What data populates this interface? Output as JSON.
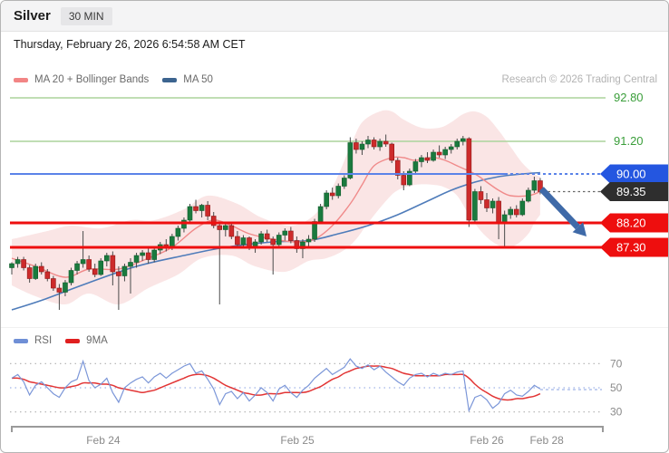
{
  "header": {
    "title": "Silver",
    "timeframe": "30 MIN"
  },
  "date_line": "Thursday, February 26, 2026 6:54:58 AM CET",
  "credit": "Research © 2026 Trading Central",
  "legend_price": {
    "items": [
      {
        "label": "MA 20 + Bollinger Bands",
        "color": "#f28585"
      },
      {
        "label": "MA 50",
        "color": "#3c648f"
      }
    ]
  },
  "legend_rsi": {
    "items": [
      {
        "label": "RSI",
        "color": "#6f8fd6"
      },
      {
        "label": "9MA",
        "color": "#e01f1f"
      }
    ]
  },
  "chart_data": {
    "type": "candlestick",
    "instrument": "Silver",
    "interval": "30 MIN",
    "colors": {
      "candle_up": "#1a7a3e",
      "candle_up_border": "#115c2c",
      "candle_down": "#cd2b2b",
      "candle_down_border": "#8e1616",
      "wick": "#4a4a4a",
      "ma20": "#f08a8a",
      "ma50": "#4f7cba",
      "bollinger_fill": "#f6cfcf",
      "rsi": "#7b96d8",
      "rsi_ma": "#e23535",
      "axis": "#9a9a9a",
      "tick_text": "#8a8a8a"
    },
    "price_axis": {
      "levels": [
        {
          "label": "92.80",
          "price": 92.8,
          "line_color": "#abd49c",
          "line_width": 1.5,
          "line": "solid",
          "badge": null,
          "text_color": "#3a9e3a",
          "layer": "under"
        },
        {
          "label": "91.20",
          "price": 91.2,
          "line_color": "#abd49c",
          "line_width": 1.5,
          "line": "solid",
          "badge": null,
          "text_color": "#3a9e3a",
          "layer": "under"
        },
        {
          "label": "90.00",
          "price": 90.0,
          "line_color": "#5b83e8",
          "line_width": 2,
          "line": "solid_dash",
          "badge": "#2456e0",
          "text_color": "#ffffff",
          "layer": "over"
        },
        {
          "label": "89.35",
          "price": 89.35,
          "line_color": "#666666",
          "line_width": 1.2,
          "line": "dash_tail",
          "badge": "#2e2e2e",
          "text_color": "#ffffff",
          "layer": "over"
        },
        {
          "label": "88.20",
          "price": 88.2,
          "line_color": "#ee0e0e",
          "line_width": 3,
          "line": "solid",
          "badge": "#ee0e0e",
          "text_color": "#ffffff",
          "layer": "over"
        },
        {
          "label": "87.30",
          "price": 87.3,
          "line_color": "#ee0e0e",
          "line_width": 3,
          "line": "solid",
          "badge": "#ee0e0e",
          "text_color": "#ffffff",
          "layer": "over"
        }
      ]
    },
    "x_axis": {
      "ticks": [
        {
          "label": "Feb 24",
          "i": 15.4
        },
        {
          "label": "Feb 25",
          "i": 48.1
        },
        {
          "label": "Feb 26",
          "i": 80.0
        },
        {
          "label": "Feb 28",
          "i": 90.1
        }
      ]
    },
    "candles": [
      [
        86.55,
        86.75,
        86.3,
        86.7
      ],
      [
        86.7,
        86.95,
        86.55,
        86.85
      ],
      [
        86.85,
        86.95,
        86.45,
        86.55
      ],
      [
        86.55,
        86.65,
        86.0,
        86.15
      ],
      [
        86.15,
        86.7,
        86.1,
        86.6
      ],
      [
        86.6,
        86.75,
        86.3,
        86.4
      ],
      [
        86.4,
        86.5,
        86.05,
        86.15
      ],
      [
        86.15,
        86.25,
        85.7,
        85.8
      ],
      [
        85.8,
        85.95,
        85.0,
        85.65
      ],
      [
        85.65,
        86.1,
        85.5,
        86.0
      ],
      [
        86.0,
        86.55,
        85.9,
        86.45
      ],
      [
        86.45,
        86.8,
        86.3,
        86.7
      ],
      [
        86.7,
        87.9,
        86.55,
        86.85
      ],
      [
        86.85,
        87.0,
        86.4,
        86.5
      ],
      [
        86.5,
        86.7,
        86.2,
        86.3
      ],
      [
        86.3,
        86.9,
        86.25,
        86.8
      ],
      [
        86.8,
        87.1,
        86.6,
        87.0
      ],
      [
        87.0,
        87.15,
        85.9,
        86.4
      ],
      [
        86.4,
        86.6,
        85.0,
        86.25
      ],
      [
        86.25,
        86.7,
        86.05,
        86.6
      ],
      [
        86.6,
        86.9,
        85.6,
        86.75
      ],
      [
        86.75,
        87.1,
        86.55,
        87.0
      ],
      [
        87.0,
        87.2,
        86.8,
        87.1
      ],
      [
        87.1,
        87.25,
        86.7,
        86.85
      ],
      [
        86.85,
        87.3,
        86.75,
        87.2
      ],
      [
        87.2,
        87.5,
        87.05,
        87.4
      ],
      [
        87.4,
        87.6,
        87.15,
        87.3
      ],
      [
        87.3,
        87.8,
        87.2,
        87.7
      ],
      [
        87.7,
        88.1,
        87.55,
        88.0
      ],
      [
        88.0,
        88.4,
        87.85,
        88.3
      ],
      [
        88.3,
        88.9,
        88.2,
        88.8
      ],
      [
        88.8,
        89.05,
        88.55,
        88.65
      ],
      [
        88.65,
        88.9,
        88.4,
        88.85
      ],
      [
        88.85,
        89.0,
        88.3,
        88.45
      ],
      [
        88.45,
        88.6,
        88.0,
        88.1
      ],
      [
        88.1,
        88.25,
        85.2,
        87.95
      ],
      [
        87.95,
        88.2,
        87.7,
        88.1
      ],
      [
        88.1,
        88.15,
        87.6,
        87.7
      ],
      [
        87.7,
        87.9,
        87.3,
        87.4
      ],
      [
        87.4,
        87.75,
        87.25,
        87.65
      ],
      [
        87.65,
        87.7,
        87.2,
        87.3
      ],
      [
        87.3,
        87.6,
        87.1,
        87.5
      ],
      [
        87.5,
        87.9,
        87.4,
        87.8
      ],
      [
        87.8,
        87.95,
        87.5,
        87.6
      ],
      [
        87.6,
        87.7,
        86.3,
        87.4
      ],
      [
        87.4,
        87.85,
        87.3,
        87.75
      ],
      [
        87.75,
        88.0,
        87.55,
        87.9
      ],
      [
        87.9,
        88.05,
        87.45,
        87.55
      ],
      [
        87.55,
        87.7,
        87.1,
        87.25
      ],
      [
        87.25,
        87.6,
        86.9,
        87.5
      ],
      [
        87.5,
        87.75,
        87.35,
        87.6
      ],
      [
        87.6,
        88.35,
        87.5,
        88.25
      ],
      [
        88.25,
        88.9,
        88.15,
        88.8
      ],
      [
        88.8,
        89.4,
        88.7,
        89.3
      ],
      [
        89.3,
        89.5,
        89.05,
        89.2
      ],
      [
        89.2,
        89.65,
        89.1,
        89.55
      ],
      [
        89.55,
        89.95,
        89.45,
        89.85
      ],
      [
        89.85,
        91.35,
        89.8,
        91.15
      ],
      [
        91.15,
        91.3,
        90.75,
        90.9
      ],
      [
        90.9,
        91.2,
        90.7,
        91.1
      ],
      [
        91.1,
        91.4,
        90.95,
        91.25
      ],
      [
        91.25,
        91.35,
        90.9,
        91.0
      ],
      [
        91.0,
        91.3,
        90.85,
        91.2
      ],
      [
        91.2,
        91.45,
        91.0,
        91.1
      ],
      [
        91.1,
        91.15,
        90.4,
        90.5
      ],
      [
        90.5,
        90.6,
        89.8,
        89.95
      ],
      [
        89.95,
        90.1,
        89.4,
        89.6
      ],
      [
        89.6,
        90.2,
        89.55,
        90.1
      ],
      [
        90.1,
        90.55,
        90.0,
        90.45
      ],
      [
        90.45,
        90.7,
        90.25,
        90.6
      ],
      [
        90.6,
        90.8,
        90.4,
        90.5
      ],
      [
        90.5,
        90.9,
        90.45,
        90.8
      ],
      [
        90.8,
        91.05,
        90.6,
        90.7
      ],
      [
        90.7,
        91.0,
        90.55,
        90.9
      ],
      [
        90.9,
        91.1,
        90.75,
        91.0
      ],
      [
        91.0,
        91.3,
        90.9,
        91.2
      ],
      [
        91.2,
        91.4,
        91.05,
        91.3
      ],
      [
        91.3,
        91.35,
        88.05,
        88.3
      ],
      [
        88.3,
        89.45,
        88.15,
        89.35
      ],
      [
        89.35,
        89.55,
        88.9,
        89.05
      ],
      [
        89.05,
        89.3,
        88.6,
        88.75
      ],
      [
        88.75,
        89.1,
        88.55,
        89.0
      ],
      [
        89.0,
        89.15,
        87.6,
        88.2
      ],
      [
        88.2,
        88.65,
        87.3,
        88.5
      ],
      [
        88.5,
        88.8,
        88.35,
        88.7
      ],
      [
        88.7,
        88.85,
        88.4,
        88.5
      ],
      [
        88.5,
        89.1,
        88.45,
        89.0
      ],
      [
        89.0,
        89.5,
        88.95,
        89.4
      ],
      [
        89.4,
        89.9,
        89.3,
        89.75
      ],
      [
        89.75,
        89.85,
        89.25,
        89.35
      ]
    ],
    "ma20": [
      [
        0,
        86.9
      ],
      [
        4,
        86.6
      ],
      [
        9,
        86.2
      ],
      [
        13,
        86.5
      ],
      [
        18,
        86.5
      ],
      [
        23,
        86.9
      ],
      [
        27,
        87.3
      ],
      [
        31,
        88.0
      ],
      [
        34,
        88.3
      ],
      [
        37,
        88.1
      ],
      [
        40,
        87.8
      ],
      [
        44,
        87.6
      ],
      [
        48,
        87.5
      ],
      [
        51,
        87.6
      ],
      [
        54,
        88.1
      ],
      [
        57,
        88.9
      ],
      [
        59,
        89.6
      ],
      [
        61,
        90.3
      ],
      [
        64,
        90.6
      ],
      [
        66,
        90.6
      ],
      [
        68,
        90.5
      ],
      [
        71,
        90.6
      ],
      [
        73,
        90.5
      ],
      [
        75,
        90.3
      ],
      [
        78,
        90.0
      ],
      [
        80,
        89.7
      ],
      [
        82,
        89.4
      ],
      [
        84,
        89.2
      ],
      [
        87,
        89.2
      ],
      [
        89,
        89.35
      ]
    ],
    "ma50": [
      [
        0,
        85.0
      ],
      [
        5,
        85.35
      ],
      [
        13,
        86.0
      ],
      [
        21,
        86.6
      ],
      [
        29,
        87.0
      ],
      [
        36,
        87.3
      ],
      [
        44,
        87.5
      ],
      [
        50,
        87.55
      ],
      [
        55,
        87.8
      ],
      [
        60,
        88.1
      ],
      [
        65,
        88.5
      ],
      [
        70,
        89.0
      ],
      [
        74,
        89.4
      ],
      [
        78,
        89.7
      ],
      [
        82,
        89.9
      ],
      [
        86,
        90.0
      ],
      [
        89,
        90.05
      ]
    ],
    "bollinger_upper": [
      [
        0,
        87.6
      ],
      [
        6,
        87.9
      ],
      [
        10,
        88.1
      ],
      [
        15,
        88.0
      ],
      [
        20,
        88.3
      ],
      [
        24,
        88.3
      ],
      [
        29,
        88.7
      ],
      [
        33,
        89.2
      ],
      [
        38,
        88.9
      ],
      [
        42,
        88.4
      ],
      [
        47,
        88.1
      ],
      [
        51,
        88.5
      ],
      [
        54,
        89.5
      ],
      [
        57,
        91.0
      ],
      [
        59,
        91.9
      ],
      [
        62,
        92.3
      ],
      [
        64,
        92.3
      ],
      [
        66,
        92.0
      ],
      [
        69,
        91.7
      ],
      [
        72,
        91.7
      ],
      [
        74,
        91.9
      ],
      [
        76,
        92.2
      ],
      [
        78,
        92.3
      ],
      [
        80,
        92.1
      ],
      [
        82,
        91.6
      ],
      [
        84,
        91.0
      ],
      [
        86,
        90.4
      ],
      [
        88,
        90.0
      ],
      [
        89,
        89.9
      ]
    ],
    "bollinger_lower": [
      [
        0,
        85.9
      ],
      [
        4,
        85.5
      ],
      [
        9,
        85.2
      ],
      [
        13,
        85.6
      ],
      [
        18,
        85.2
      ],
      [
        23,
        85.8
      ],
      [
        28,
        86.3
      ],
      [
        32,
        86.9
      ],
      [
        37,
        87.0
      ],
      [
        41,
        86.6
      ],
      [
        46,
        86.4
      ],
      [
        50,
        86.8
      ],
      [
        53,
        86.9
      ],
      [
        56,
        87.2
      ],
      [
        58,
        87.6
      ],
      [
        60,
        88.2
      ],
      [
        63,
        89.0
      ],
      [
        65,
        89.4
      ],
      [
        68,
        89.6
      ],
      [
        71,
        89.6
      ],
      [
        73,
        89.5
      ],
      [
        75,
        89.2
      ],
      [
        77,
        88.5
      ],
      [
        79,
        87.9
      ],
      [
        81,
        87.5
      ],
      [
        83,
        87.3
      ],
      [
        85,
        87.4
      ],
      [
        87,
        87.8
      ],
      [
        88,
        88.2
      ],
      [
        89,
        88.5
      ]
    ],
    "rsi": {
      "range": [
        30,
        70
      ],
      "gridlines": [
        {
          "value": 70,
          "color": "#b8b8b8"
        },
        {
          "value": 50,
          "color": "#9fb3e8"
        },
        {
          "value": 30,
          "color": "#b8b8b8"
        }
      ],
      "values": [
        58,
        61,
        55,
        44,
        52,
        55,
        50,
        45,
        42,
        50,
        55,
        57,
        72,
        56,
        50,
        53,
        58,
        46,
        38,
        50,
        54,
        57,
        59,
        54,
        59,
        62,
        58,
        62,
        65,
        68,
        70,
        62,
        64,
        57,
        49,
        36,
        45,
        47,
        41,
        46,
        39,
        44,
        50,
        46,
        39,
        49,
        52,
        46,
        42,
        48,
        52,
        58,
        62,
        66,
        61,
        64,
        67,
        74,
        68,
        66,
        69,
        65,
        68,
        63,
        59,
        55,
        52,
        58,
        61,
        62,
        59,
        62,
        60,
        62,
        61,
        63,
        64,
        31,
        42,
        44,
        40,
        33,
        37,
        45,
        48,
        44,
        43,
        47,
        52,
        49
      ],
      "ma9": [
        58,
        58,
        57,
        55,
        54,
        53,
        52,
        51,
        50,
        50,
        51,
        52,
        54,
        54,
        54,
        53,
        53,
        52,
        50,
        49,
        48,
        47,
        46,
        47,
        48,
        50,
        52,
        54,
        56,
        58,
        60,
        61,
        61,
        60,
        58,
        55,
        52,
        50,
        48,
        46,
        45,
        44,
        44,
        45,
        45,
        45,
        46,
        46,
        46,
        46,
        47,
        49,
        51,
        54,
        57,
        59,
        62,
        64,
        66,
        67,
        68,
        68,
        68,
        67,
        66,
        64,
        62,
        61,
        60,
        60,
        60,
        60,
        60,
        61,
        61,
        61,
        61,
        58,
        53,
        49,
        46,
        43,
        41,
        40,
        40,
        41,
        41,
        42,
        43,
        45
      ],
      "projection_value": 48.5
    },
    "annotations": {
      "arrow": {
        "from": {
          "i": 89.2,
          "price": 89.45
        },
        "to": {
          "i": 96.8,
          "price": 87.7
        },
        "color": "#3f6aa8"
      }
    }
  }
}
